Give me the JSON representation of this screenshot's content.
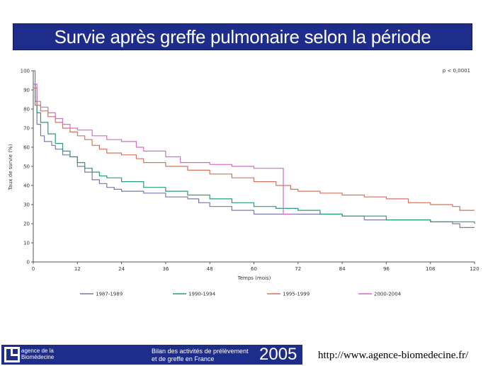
{
  "header": {
    "title": "Survie après greffe pulmonaire selon la période"
  },
  "chart_data": {
    "type": "line",
    "title": "",
    "xlabel": "Temps (mois)",
    "ylabel": "Taux de survie (%)",
    "xlim": [
      0,
      120
    ],
    "ylim": [
      0,
      100
    ],
    "x_ticks": [
      0,
      12,
      24,
      36,
      48,
      60,
      72,
      84,
      96,
      108,
      120
    ],
    "y_ticks": [
      0,
      10,
      20,
      30,
      40,
      50,
      60,
      70,
      80,
      90,
      100
    ],
    "annotation": "p < 0,0001",
    "legend_position": "bottom",
    "series": [
      {
        "name": "1987-1989",
        "color": "#7b79a8",
        "points": [
          [
            0,
            100
          ],
          [
            0.5,
            82
          ],
          [
            1,
            72
          ],
          [
            2,
            66
          ],
          [
            3,
            63
          ],
          [
            5,
            61
          ],
          [
            6,
            59
          ],
          [
            8,
            56
          ],
          [
            10,
            55
          ],
          [
            12,
            50
          ],
          [
            14,
            47
          ],
          [
            16,
            43
          ],
          [
            18,
            41
          ],
          [
            20,
            39
          ],
          [
            22,
            38
          ],
          [
            24,
            37
          ],
          [
            30,
            36
          ],
          [
            36,
            34
          ],
          [
            42,
            33
          ],
          [
            45,
            31
          ],
          [
            48,
            29
          ],
          [
            54,
            27
          ],
          [
            60,
            25
          ],
          [
            66,
            25
          ],
          [
            72,
            25
          ],
          [
            78,
            25
          ],
          [
            84,
            24
          ],
          [
            90,
            22
          ],
          [
            96,
            22
          ],
          [
            108,
            21
          ],
          [
            114,
            20
          ],
          [
            116,
            18
          ],
          [
            120,
            18
          ]
        ]
      },
      {
        "name": "1990-1994",
        "color": "#2a9a7a",
        "points": [
          [
            0,
            93
          ],
          [
            0.5,
            84
          ],
          [
            1,
            78
          ],
          [
            2,
            73
          ],
          [
            4,
            67
          ],
          [
            6,
            62
          ],
          [
            8,
            58
          ],
          [
            10,
            55
          ],
          [
            12,
            52
          ],
          [
            14,
            49
          ],
          [
            16,
            47
          ],
          [
            18,
            45
          ],
          [
            20,
            44
          ],
          [
            24,
            42
          ],
          [
            30,
            39
          ],
          [
            36,
            37
          ],
          [
            42,
            35
          ],
          [
            48,
            33
          ],
          [
            54,
            31
          ],
          [
            60,
            29
          ],
          [
            66,
            28
          ],
          [
            72,
            27
          ],
          [
            78,
            25
          ],
          [
            84,
            24
          ],
          [
            96,
            22
          ],
          [
            108,
            21
          ],
          [
            114,
            21
          ],
          [
            120,
            20
          ]
        ]
      },
      {
        "name": "1995-1999",
        "color": "#d4735f",
        "points": [
          [
            0,
            91
          ],
          [
            1,
            82
          ],
          [
            2,
            79
          ],
          [
            4,
            76
          ],
          [
            6,
            73
          ],
          [
            8,
            70
          ],
          [
            10,
            68
          ],
          [
            12,
            66
          ],
          [
            14,
            64
          ],
          [
            16,
            61
          ],
          [
            18,
            59
          ],
          [
            20,
            57
          ],
          [
            24,
            56
          ],
          [
            28,
            54
          ],
          [
            30,
            52
          ],
          [
            36,
            50
          ],
          [
            42,
            48
          ],
          [
            48,
            46
          ],
          [
            54,
            44
          ],
          [
            60,
            42
          ],
          [
            66,
            40
          ],
          [
            70,
            38
          ],
          [
            72,
            37
          ],
          [
            78,
            36
          ],
          [
            84,
            35
          ],
          [
            90,
            34
          ],
          [
            96,
            33
          ],
          [
            102,
            31
          ],
          [
            108,
            30
          ],
          [
            114,
            29
          ],
          [
            116,
            27
          ],
          [
            120,
            27
          ]
        ]
      },
      {
        "name": "2000-2004",
        "color": "#d56bc4",
        "points": [
          [
            0,
            93
          ],
          [
            1,
            84
          ],
          [
            2,
            81
          ],
          [
            4,
            78
          ],
          [
            6,
            75
          ],
          [
            8,
            72
          ],
          [
            10,
            70
          ],
          [
            12,
            69
          ],
          [
            16,
            66
          ],
          [
            20,
            64
          ],
          [
            24,
            63
          ],
          [
            28,
            60
          ],
          [
            30,
            58
          ],
          [
            36,
            55
          ],
          [
            40,
            52
          ],
          [
            48,
            51
          ],
          [
            54,
            50
          ],
          [
            60,
            49
          ],
          [
            68,
            49
          ],
          [
            68,
            25
          ],
          [
            70,
            25
          ]
        ]
      }
    ]
  },
  "footer": {
    "logo_line1": "agence de la",
    "logo_line2": "Biomédecine",
    "bilan_line1": "Bilan des activités de prélèvement",
    "bilan_line2": "et de greffe en France",
    "year": "2005",
    "url": "http://www.agence-biomedecine.fr/"
  }
}
